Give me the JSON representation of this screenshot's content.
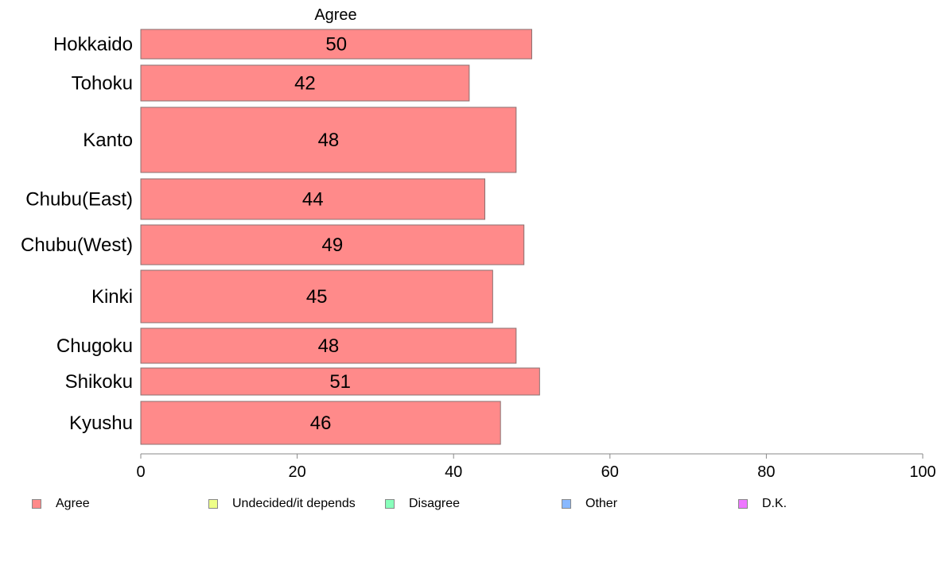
{
  "chart_data": {
    "type": "bar",
    "orientation": "horizontal",
    "title": "Agree",
    "categories": [
      "Hokkaido",
      "Tohoku",
      "Kanto",
      "Chubu(East)",
      "Chubu(West)",
      "Kinki",
      "Chugoku",
      "Shikoku",
      "Kyushu"
    ],
    "series": [
      {
        "name": "Agree",
        "color": "#ff8a8a",
        "values": [
          50,
          42,
          48,
          44,
          49,
          45,
          48,
          51,
          46
        ]
      }
    ],
    "value_labels": [
      "50",
      "42",
      "48",
      "44",
      "49",
      "45",
      "48",
      "51",
      "46"
    ],
    "xlim": [
      0,
      100
    ],
    "xticks": [
      0,
      20,
      40,
      60,
      80,
      100
    ],
    "grid": false,
    "legend_position": "bottom",
    "legend": [
      {
        "label": "Agree",
        "color": "#ff8a8a"
      },
      {
        "label": "Undecided/it depends",
        "color": "#eeff88"
      },
      {
        "label": "Disagree",
        "color": "#88ffbb"
      },
      {
        "label": "Other",
        "color": "#88b8ff"
      },
      {
        "label": "D.K.",
        "color": "#ee77ff"
      }
    ]
  }
}
